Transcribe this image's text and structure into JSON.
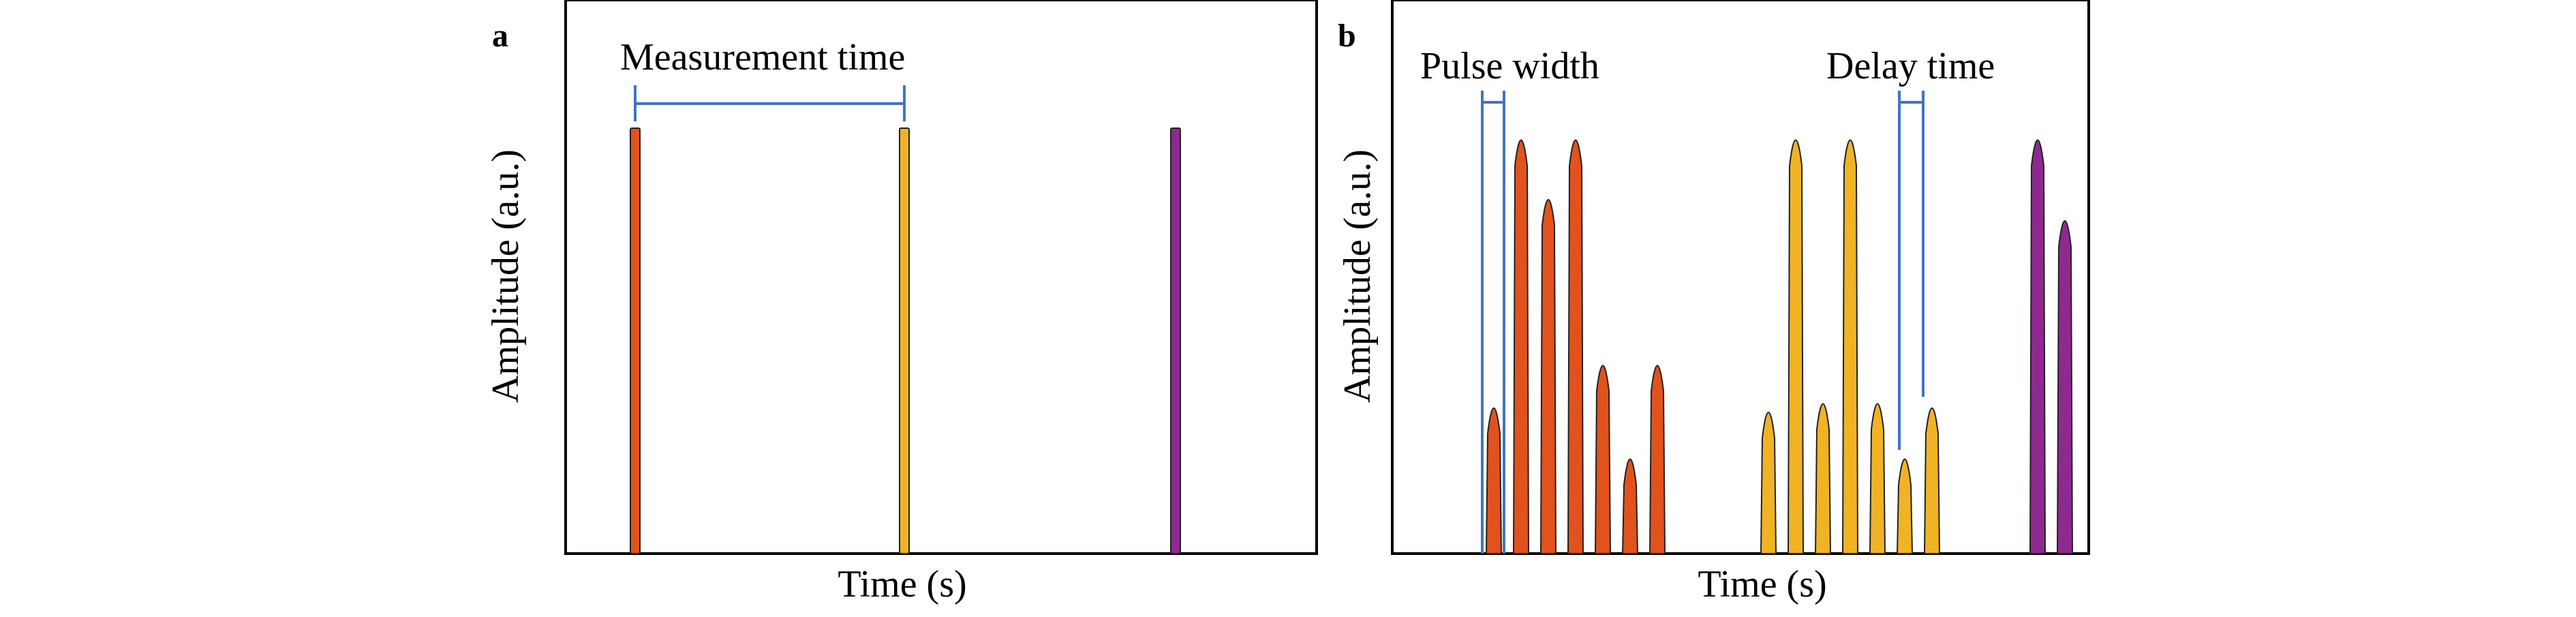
{
  "panels": [
    {
      "label": "a",
      "xlabel": "Time (s)",
      "ylabel": "Amplitude (a.u.)",
      "annotations": {
        "measurement_time": "Measurement time"
      },
      "pulses": [
        {
          "color": "#e2521c",
          "amp": 1.0
        },
        {
          "color": "#f0b324",
          "amp": 1.0
        },
        {
          "color": "#8e2a8f",
          "amp": 1.0
        }
      ]
    },
    {
      "label": "b",
      "xlabel": "Time (s)",
      "ylabel": "Amplitude (a.u.)",
      "annotations": {
        "pulse_width": "Pulse width",
        "delay_time": "Delay time"
      },
      "pulses": [
        {
          "color": "#e2521c",
          "amp": 0.37
        },
        {
          "color": "#e2521c",
          "amp": 1.0
        },
        {
          "color": "#e2521c",
          "amp": 0.86
        },
        {
          "color": "#e2521c",
          "amp": 1.0
        },
        {
          "color": "#e2521c",
          "amp": 0.47
        },
        {
          "color": "#e2521c",
          "amp": 0.25
        },
        {
          "color": "#e2521c",
          "amp": 0.47
        },
        {
          "color": "#f0b324",
          "amp": 0.36
        },
        {
          "color": "#f0b324",
          "amp": 1.0
        },
        {
          "color": "#f0b324",
          "amp": 0.38
        },
        {
          "color": "#f0b324",
          "amp": 1.0
        },
        {
          "color": "#f0b324",
          "amp": 0.38
        },
        {
          "color": "#f0b324",
          "amp": 0.25
        },
        {
          "color": "#f0b324",
          "amp": 0.37
        },
        {
          "color": "#8e2a8f",
          "amp": 1.0
        },
        {
          "color": "#8e2a8f",
          "amp": 0.81
        }
      ]
    }
  ],
  "colors": {
    "bracket": "#4472c4",
    "frame": "#000000"
  }
}
